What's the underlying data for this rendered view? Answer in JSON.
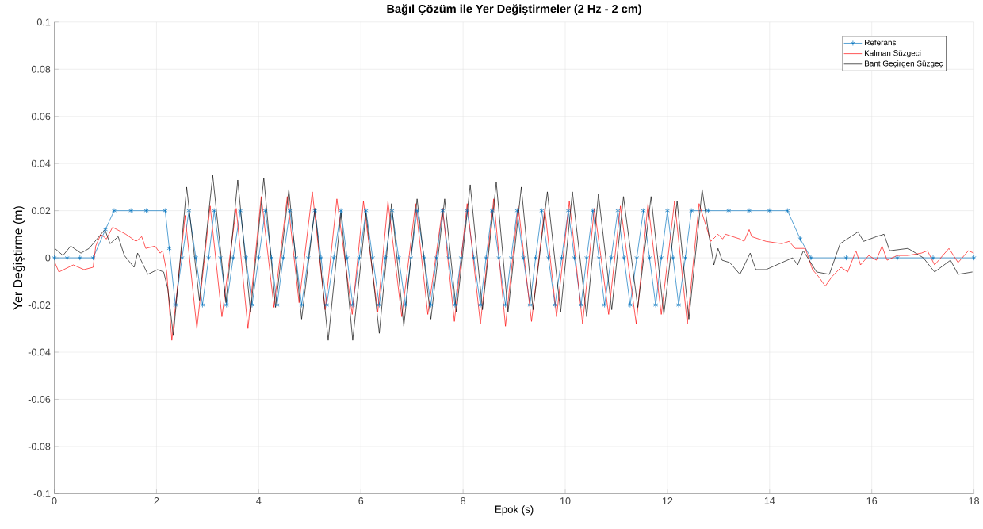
{
  "chart_data": {
    "type": "line",
    "title": "Bağıl Çözüm ile Yer Değiştirmeler (2 Hz - 2 cm)",
    "xlabel": "Epok (s)",
    "ylabel": "Yer Değiştirme (m)",
    "xlim": [
      0,
      18
    ],
    "ylim": [
      -0.1,
      0.1
    ],
    "xticks": [
      0,
      2,
      4,
      6,
      8,
      10,
      12,
      14,
      16,
      18
    ],
    "yticks": [
      -0.1,
      -0.08,
      -0.06,
      -0.04,
      -0.02,
      0,
      0.02,
      0.04,
      0.06,
      0.08,
      0.1
    ],
    "grid": true,
    "legend": "top right",
    "series": [
      {
        "name": "Referans",
        "color": "#0072bd",
        "marker": "cross",
        "x": [
          0,
          0.25,
          0.5,
          0.76,
          1.0,
          1.17,
          1.5,
          1.8,
          2.17,
          2.25,
          2.37,
          2.5,
          2.635,
          2.77,
          2.9,
          3.02,
          3.13,
          3.25,
          3.37,
          3.5,
          3.64,
          3.75,
          3.87,
          4.0,
          4.13,
          4.25,
          4.36,
          4.48,
          4.61,
          4.73,
          4.84,
          4.97,
          5.1,
          5.22,
          5.33,
          5.47,
          5.61,
          5.73,
          5.84,
          5.97,
          6.1,
          6.23,
          6.36,
          6.48,
          6.61,
          6.74,
          6.87,
          6.98,
          7.1,
          7.24,
          7.37,
          7.48,
          7.6,
          7.72,
          7.84,
          7.96,
          8.08,
          8.21,
          8.34,
          8.45,
          8.57,
          8.7,
          8.83,
          8.94,
          9.06,
          9.18,
          9.31,
          9.42,
          9.54,
          9.67,
          9.8,
          9.93,
          10.06,
          10.18,
          10.31,
          10.42,
          10.54,
          10.66,
          10.77,
          10.9,
          11.03,
          11.15,
          11.27,
          11.4,
          11.53,
          11.65,
          11.77,
          11.88,
          12.0,
          12.11,
          12.22,
          12.35,
          12.47,
          12.8,
          13.2,
          13.6,
          14.0,
          14.35,
          14.6,
          14.81,
          15.5,
          16.5,
          17.2,
          18
        ],
        "values": [
          0,
          0,
          0,
          0,
          0.012,
          0.02,
          0.02,
          0.02,
          0.02,
          0.004,
          -0.02,
          0,
          0.02,
          0,
          -0.02,
          0,
          0.02,
          0,
          -0.02,
          0,
          0.02,
          0,
          -0.02,
          0,
          0.02,
          0,
          -0.02,
          0,
          0.02,
          0,
          -0.02,
          0,
          0.02,
          0,
          -0.02,
          0,
          0.02,
          0,
          -0.02,
          0,
          0.02,
          0,
          -0.02,
          0,
          0.02,
          0,
          -0.02,
          0,
          0.02,
          0,
          -0.02,
          0,
          0.02,
          0,
          -0.02,
          0,
          0.02,
          0,
          -0.02,
          0,
          0.02,
          0,
          -0.02,
          0,
          0.02,
          0,
          -0.02,
          0,
          0.02,
          0,
          -0.02,
          0,
          0.02,
          0,
          -0.02,
          0,
          0.02,
          0,
          -0.02,
          0,
          0.02,
          0,
          -0.02,
          0,
          0.02,
          0,
          -0.02,
          0,
          0.02,
          0,
          -0.02,
          0,
          0.02,
          0.02,
          0.02,
          0.02,
          0.02,
          0.02,
          0.008,
          0,
          0,
          0,
          0,
          0
        ]
      },
      {
        "name": "Kalman Süzgeci",
        "color": "#ff0000",
        "marker": "none",
        "x": [
          0.01,
          0.09,
          0.37,
          0.58,
          0.76,
          0.81,
          0.91,
          1.02,
          1.14,
          1.4,
          1.6,
          1.71,
          1.79,
          1.97,
          2.07,
          2.12,
          2.2,
          2.3,
          2.56,
          2.79,
          3.05,
          3.28,
          3.56,
          3.79,
          4.05,
          4.3,
          4.56,
          4.79,
          5.05,
          5.3,
          5.53,
          5.83,
          6.05,
          6.33,
          6.53,
          6.8,
          7.07,
          7.31,
          7.6,
          7.83,
          8.08,
          8.34,
          8.6,
          8.83,
          9.08,
          9.34,
          9.6,
          9.83,
          10.08,
          10.34,
          10.57,
          10.85,
          11.08,
          11.39,
          11.62,
          11.88,
          12.14,
          12.39,
          12.62,
          12.85,
          12.99,
          13.08,
          13.14,
          13.42,
          13.5,
          13.6,
          13.65,
          13.93,
          14.24,
          14.38,
          14.5,
          14.7,
          14.84,
          14.96,
          15.09,
          15.22,
          15.4,
          15.53,
          15.69,
          15.78,
          15.94,
          16.09,
          16.2,
          16.3,
          16.5,
          16.71,
          16.97,
          17.09,
          17.23,
          17.51,
          17.69,
          17.89,
          18
        ],
        "values": [
          -0.002,
          -0.006,
          -0.003,
          -0.005,
          -0.004,
          0.005,
          0.01,
          0.008,
          0.013,
          0.01,
          0.007,
          0.009,
          0.004,
          0.005,
          0.002,
          0.003,
          -0.006,
          -0.035,
          0.018,
          -0.03,
          0.022,
          -0.025,
          0.021,
          -0.03,
          0.026,
          -0.021,
          0.026,
          -0.019,
          0.028,
          -0.022,
          0.025,
          -0.024,
          0.024,
          -0.023,
          0.024,
          -0.025,
          0.023,
          -0.024,
          0.021,
          -0.027,
          0.023,
          -0.028,
          0.025,
          -0.029,
          0.022,
          -0.027,
          0.021,
          -0.025,
          0.024,
          -0.028,
          0.021,
          -0.024,
          0.022,
          -0.028,
          0.023,
          -0.024,
          0.024,
          -0.028,
          0.023,
          0.007,
          0.01,
          0.008,
          0.01,
          0.008,
          0.007,
          0.012,
          0.009,
          0.007,
          0.006,
          0.007,
          0.004,
          0.004,
          -0.005,
          -0.008,
          -0.012,
          -0.008,
          -0.004,
          -0.006,
          0.003,
          -0.003,
          0.001,
          -0.001,
          0.005,
          -0.001,
          0.001,
          0.001,
          0.002,
          0.003,
          -0.003,
          0.004,
          -0.002,
          0.003,
          0.002
        ]
      },
      {
        "name": "Bant Geçirgen Süzgeç",
        "color": "#000000",
        "marker": "none",
        "x": [
          0.01,
          0.17,
          0.32,
          0.52,
          0.68,
          0.99,
          1.09,
          1.25,
          1.37,
          1.56,
          1.63,
          1.83,
          2.02,
          2.14,
          2.22,
          2.33,
          2.59,
          2.84,
          3.1,
          3.36,
          3.59,
          3.84,
          4.1,
          4.33,
          4.59,
          4.84,
          5.1,
          5.36,
          5.61,
          5.84,
          6.1,
          6.36,
          6.6,
          6.84,
          7.1,
          7.37,
          7.64,
          7.87,
          8.14,
          8.38,
          8.65,
          8.88,
          9.14,
          9.37,
          9.65,
          9.91,
          10.14,
          10.42,
          10.65,
          10.91,
          11.14,
          11.42,
          11.68,
          11.93,
          12.19,
          12.42,
          12.68,
          12.81,
          12.91,
          12.99,
          13.07,
          13.22,
          13.42,
          13.62,
          13.73,
          13.93,
          14.24,
          14.45,
          14.55,
          14.66,
          14.92,
          15.17,
          15.38,
          15.73,
          15.84,
          16.09,
          16.24,
          16.35,
          16.71,
          17.01,
          17.23,
          17.54,
          17.69,
          17.97
        ],
        "values": [
          0.004,
          0.001,
          0.005,
          0.002,
          0.004,
          0.012,
          0.006,
          0.009,
          0.001,
          -0.004,
          0.002,
          -0.007,
          -0.005,
          -0.006,
          -0.013,
          -0.033,
          0.03,
          -0.018,
          0.035,
          -0.019,
          0.033,
          -0.023,
          0.034,
          -0.021,
          0.029,
          -0.026,
          0.021,
          -0.035,
          0.019,
          -0.035,
          0.019,
          -0.032,
          0.023,
          -0.029,
          0.025,
          -0.026,
          0.025,
          -0.023,
          0.031,
          -0.022,
          0.032,
          -0.023,
          0.03,
          -0.022,
          0.028,
          -0.023,
          0.028,
          -0.025,
          0.027,
          -0.022,
          0.026,
          -0.021,
          0.026,
          -0.024,
          0.024,
          -0.026,
          0.029,
          0.01,
          -0.003,
          0.004,
          -0.001,
          -0.002,
          -0.007,
          0.002,
          -0.005,
          -0.005,
          -0.002,
          0.0,
          -0.003,
          0.003,
          -0.006,
          -0.007,
          0.006,
          0.011,
          0.007,
          0.009,
          0.01,
          0.003,
          0.004,
          0.0,
          -0.006,
          -0.001,
          -0.007,
          -0.006
        ]
      }
    ]
  }
}
